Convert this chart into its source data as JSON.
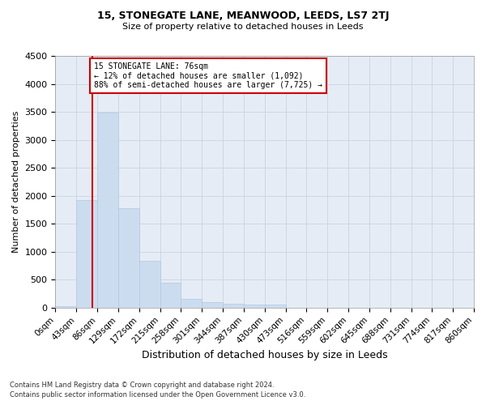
{
  "title1": "15, STONEGATE LANE, MEANWOOD, LEEDS, LS7 2TJ",
  "title2": "Size of property relative to detached houses in Leeds",
  "xlabel": "Distribution of detached houses by size in Leeds",
  "ylabel": "Number of detached properties",
  "footnote1": "Contains HM Land Registry data © Crown copyright and database right 2024.",
  "footnote2": "Contains public sector information licensed under the Open Government Licence v3.0.",
  "annotation_line1": "15 STONEGATE LANE: 76sqm",
  "annotation_line2": "← 12% of detached houses are smaller (1,092)",
  "annotation_line3": "88% of semi-detached houses are larger (7,725) →",
  "bar_color": "#ccdcef",
  "bar_edge_color": "#b0c8e4",
  "grid_color": "#c8d4e4",
  "marker_color": "#cc0000",
  "annotation_box_color": "#cc0000",
  "bin_edges": [
    0,
    43,
    86,
    129,
    172,
    215,
    258,
    301,
    344,
    387,
    430,
    473,
    516,
    559,
    602,
    645,
    688,
    731,
    774,
    817,
    860
  ],
  "bin_heights": [
    30,
    1920,
    3480,
    1780,
    840,
    450,
    160,
    95,
    70,
    60,
    50,
    0,
    0,
    0,
    0,
    0,
    0,
    0,
    0,
    0
  ],
  "property_size": 76,
  "ylim": [
    0,
    4500
  ],
  "yticks": [
    0,
    500,
    1000,
    1500,
    2000,
    2500,
    3000,
    3500,
    4000,
    4500
  ],
  "background_color": "#ffffff",
  "plot_bg_color": "#e6ecf5"
}
